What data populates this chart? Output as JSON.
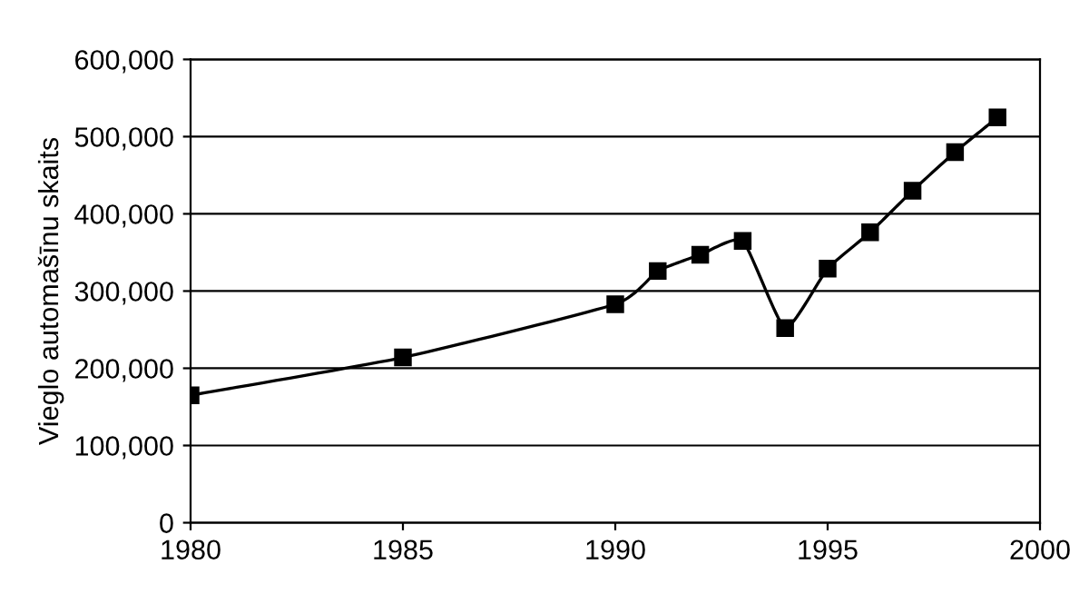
{
  "chart_data": {
    "type": "line",
    "ylabel": "Vieglo automašīnu skaits",
    "x": [
      1980,
      1985,
      1990,
      1991,
      1992,
      1993,
      1994,
      1995,
      1996,
      1997,
      1998,
      1999
    ],
    "series": [
      {
        "color": "#000000",
        "values": [
          165000,
          214000,
          283000,
          326000,
          347000,
          365000,
          252000,
          329000,
          376000,
          430000,
          480000,
          525000
        ]
      }
    ],
    "xlim": [
      1980,
      2000
    ],
    "xticks": [
      {
        "value": 1980,
        "label": "1980"
      },
      {
        "value": 1985,
        "label": "1985"
      },
      {
        "value": 1990,
        "label": "1990"
      },
      {
        "value": 1995,
        "label": "1995"
      },
      {
        "value": 2000,
        "label": "2000"
      }
    ],
    "ylim": [
      0,
      600000
    ],
    "yticks": [
      {
        "value": 0,
        "label": "0"
      },
      {
        "value": 100000,
        "label": "100,000"
      },
      {
        "value": 200000,
        "label": "200,000"
      },
      {
        "value": 300000,
        "label": "300,000"
      },
      {
        "value": 400000,
        "label": "400,000"
      },
      {
        "value": 500000,
        "label": "500,000"
      },
      {
        "value": 600000,
        "label": "600,000"
      }
    ],
    "grid": "y",
    "marker": "square",
    "line_style": "solid",
    "legend": false
  }
}
